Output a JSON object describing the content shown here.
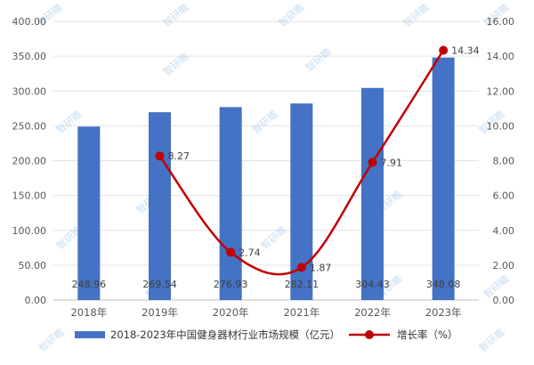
{
  "chart_data": {
    "type": "bar",
    "categories": [
      "2018年",
      "2019年",
      "2020年",
      "2021年",
      "2022年",
      "2023年"
    ],
    "series": [
      {
        "name": "2018-2023年中国健身器材行业市场规模（亿元）",
        "type": "bar",
        "axis": "left",
        "values": [
          248.96,
          269.54,
          276.93,
          282.11,
          304.43,
          348.08
        ],
        "labels": [
          "248.96",
          "269.54",
          "276.93",
          "282.11",
          "304.43",
          "348.08"
        ],
        "color": "#4472C4"
      },
      {
        "name": "增长率（%）",
        "type": "line",
        "axis": "right",
        "smooth": true,
        "values": [
          null,
          8.27,
          2.74,
          1.87,
          7.91,
          14.34
        ],
        "labels": [
          "",
          "8.27",
          "2.74",
          "1.87",
          "7.91",
          "14.34"
        ],
        "color": "#C00000"
      }
    ],
    "y_left": {
      "ylim": [
        0,
        400
      ],
      "ticks": [
        "0.00",
        "50.00",
        "100.00",
        "150.00",
        "200.00",
        "250.00",
        "300.00",
        "350.00",
        "400.00"
      ]
    },
    "y_right": {
      "ylim": [
        0,
        16
      ],
      "ticks": [
        "0.00",
        "2.00",
        "4.00",
        "6.00",
        "8.00",
        "10.00",
        "12.00",
        "14.00",
        "16.00"
      ]
    },
    "grid": true,
    "legend_position": "bottom",
    "watermark": "智研瞻"
  }
}
